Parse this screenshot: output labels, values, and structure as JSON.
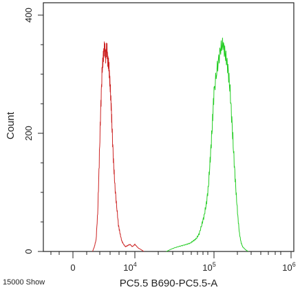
{
  "chart_data": {
    "type": "line",
    "title": "",
    "xlabel": "PC5.5 B690-PC5.5-A",
    "ylabel": "Count",
    "footer_note": "15000 Show",
    "x_scale": "biexponential",
    "xlim": [
      -1000,
      1000000
    ],
    "ylim": [
      0,
      420
    ],
    "x_tick_labels": [
      "0",
      "10",
      "4",
      "10",
      "5",
      "10",
      "6"
    ],
    "y_tick_labels": [
      "0",
      "200",
      "400"
    ],
    "grid": false,
    "legend": "none",
    "series": [
      {
        "color": "#cc2222",
        "x": [
          1000,
          1200,
          1400,
          1600,
          1800,
          2000,
          2200,
          2400,
          2600,
          2800,
          3000,
          3200,
          3400,
          3600,
          3800,
          4000,
          4300,
          4600,
          5000,
          5400,
          5800,
          6200,
          6700,
          7200,
          7800,
          8500,
          9200,
          10000,
          11000,
          12000,
          13000
        ],
        "y": [
          0,
          8,
          20,
          65,
          150,
          235,
          300,
          330,
          345,
          330,
          345,
          320,
          310,
          280,
          250,
          205,
          150,
          110,
          75,
          45,
          30,
          18,
          12,
          8,
          10,
          12,
          8,
          12,
          6,
          3,
          0
        ]
      },
      {
        "color": "#22cc22",
        "x": [
          25000,
          30000,
          35000,
          40000,
          45000,
          50000,
          55000,
          60000,
          65000,
          70000,
          75000,
          80000,
          85000,
          90000,
          95000,
          100000,
          110000,
          120000,
          130000,
          140000,
          150000,
          160000,
          170000,
          180000,
          190000,
          200000,
          210000,
          220000,
          230000,
          250000,
          270000
        ],
        "y": [
          0,
          5,
          8,
          10,
          12,
          14,
          18,
          22,
          30,
          45,
          60,
          80,
          110,
          160,
          210,
          270,
          310,
          340,
          352,
          330,
          310,
          270,
          210,
          150,
          100,
          60,
          30,
          15,
          8,
          3,
          0
        ]
      }
    ]
  }
}
